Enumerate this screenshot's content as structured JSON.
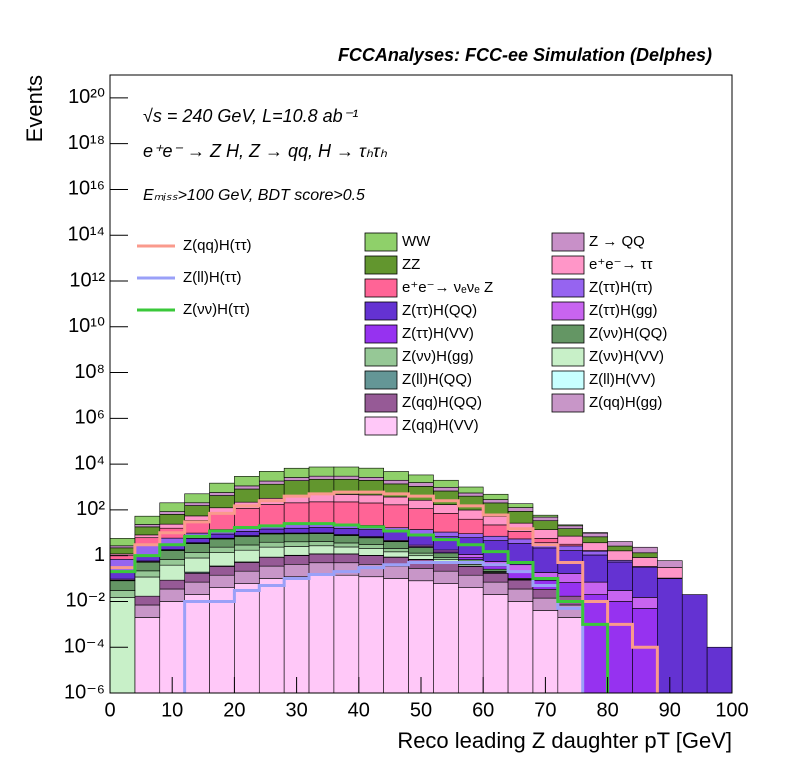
{
  "chart_data": {
    "type": "stacked_histogram",
    "title": "FCCAnalyses: FCC-ee Simulation (Delphes)",
    "annotations": [
      "√s = 240 GeV, L=10.8 ab⁻¹",
      "e⁺e⁻ → Z H, Z → qq, H → τₕτₕ",
      "Eₘᵢₛₛ>100 GeV, BDT score>0.5"
    ],
    "xlabel": "Reco leading Z daughter pT [GeV]",
    "ylabel": "Events",
    "log_y": true,
    "bins": [
      0,
      4,
      8,
      12,
      16,
      20,
      24,
      28,
      32,
      36,
      40,
      44,
      48,
      52,
      56,
      60,
      64,
      68,
      72,
      76,
      80,
      84,
      88,
      92,
      96,
      100
    ],
    "xlim": [
      0,
      100
    ],
    "xticks": [
      0,
      10,
      20,
      30,
      40,
      50,
      60,
      70,
      80,
      90,
      100
    ],
    "ylim": [
      1e-06,
      1e+21
    ],
    "yticks": [
      {
        "value": 1e-06,
        "label": "10⁻⁶"
      },
      {
        "value": 0.0001,
        "label": "10⁻⁴"
      },
      {
        "value": 0.01,
        "label": "10⁻²"
      },
      1,
      {
        "value": 100,
        "label": "10²"
      },
      {
        "value": 10000.0,
        "label": "10⁴"
      },
      {
        "value": 1000000.0,
        "label": "10⁶"
      },
      {
        "value": 100000000.0,
        "label": "10⁸"
      },
      {
        "value": 10000000000.0,
        "label": "10¹⁰"
      },
      {
        "value": 1000000000000.0,
        "label": "10¹²"
      },
      {
        "value": 100000000000000.0,
        "label": "10¹⁴"
      },
      {
        "value": 1e+16,
        "label": "10¹⁶"
      },
      {
        "value": 1e+18,
        "label": "10¹⁸"
      },
      {
        "value": 1e+20,
        "label": "10²⁰"
      }
    ],
    "series": [
      {
        "name": "WW",
        "color": "#8fd06a",
        "values": [
          3,
          30,
          120,
          300,
          900,
          1800,
          3000,
          4000,
          4500,
          4500,
          4000,
          2800,
          1800,
          1000,
          450,
          200,
          60,
          10,
          2,
          0.5,
          0,
          0,
          0,
          0,
          0
        ]
      },
      {
        "name": "Z → QQ",
        "color": "#c890c8",
        "values": [
          0.5,
          5,
          20,
          50,
          150,
          300,
          500,
          700,
          800,
          800,
          700,
          600,
          500,
          300,
          150,
          80,
          40,
          15,
          5,
          3,
          1.5,
          1,
          0.3,
          0,
          0
        ]
      },
      {
        "name": "ZZ",
        "color": "#62962e",
        "values": [
          1,
          10,
          40,
          100,
          300,
          600,
          1000,
          1500,
          1700,
          1700,
          1500,
          1000,
          800,
          500,
          300,
          150,
          60,
          20,
          8,
          3,
          1,
          0.5,
          0,
          0,
          0
        ]
      },
      {
        "name": "e⁺e⁻→ ττ",
        "color": "#ff96c8",
        "values": [
          0.2,
          2,
          8,
          20,
          50,
          100,
          150,
          200,
          250,
          250,
          250,
          200,
          150,
          100,
          60,
          30,
          15,
          8,
          4,
          2,
          1,
          0.5,
          0.2,
          0,
          0
        ]
      },
      {
        "name": "e⁺e⁻→ νₑνₑ Z",
        "color": "#ff6496",
        "values": [
          0.3,
          3,
          10,
          25,
          60,
          100,
          150,
          180,
          200,
          200,
          180,
          150,
          100,
          60,
          30,
          15,
          6,
          2,
          0.5,
          0.1,
          0,
          0,
          0,
          0,
          0
        ]
      },
      {
        "name": "Z(ττ)H(ττ)",
        "color": "#9664f0",
        "values": [
          0.5,
          2,
          3,
          4,
          5,
          6,
          7,
          8,
          8,
          8,
          7,
          6,
          5,
          4,
          3,
          2.5,
          2,
          1.5,
          1,
          0.5,
          0.1,
          0.02,
          0.005,
          0,
          0
        ]
      },
      {
        "name": "Z(ττ)H(QQ)",
        "color": "#6432d2",
        "values": [
          0.1,
          0.5,
          1,
          2,
          3,
          4,
          5,
          6,
          7,
          7,
          7,
          6,
          6,
          5,
          5,
          4,
          3,
          2,
          1.5,
          1,
          0.5,
          0.3,
          0.1,
          0.02,
          0.0001
        ]
      },
      {
        "name": "Z(ττ)H(gg)",
        "color": "#c864f0",
        "values": [
          0.01,
          0.05,
          0.1,
          0.2,
          0.3,
          0.4,
          0.5,
          0.5,
          0.5,
          0.5,
          0.5,
          0.4,
          0.4,
          0.3,
          0.3,
          0.2,
          0.2,
          0.1,
          0.1,
          0.05,
          0.02,
          0.01,
          0,
          0,
          0
        ]
      },
      {
        "name": "Z(ττ)H(VV)",
        "color": "#9632f0",
        "values": [
          0.005,
          0.02,
          0.05,
          0.1,
          0.15,
          0.2,
          0.25,
          0.25,
          0.25,
          0.25,
          0.25,
          0.2,
          0.2,
          0.15,
          0.15,
          0.1,
          0.1,
          0.05,
          0.05,
          0.02,
          0.01,
          0.005,
          0,
          0,
          0
        ]
      },
      {
        "name": "Z(νν)H(QQ)",
        "color": "#649664",
        "values": [
          0.05,
          0.3,
          1,
          2,
          3,
          4,
          5,
          5,
          5,
          4,
          3,
          2,
          1,
          0.5,
          0.2,
          0.05,
          0.01,
          0,
          0,
          0,
          0,
          0,
          0,
          0,
          0
        ]
      },
      {
        "name": "Z(νν)H(gg)",
        "color": "#96c896",
        "values": [
          0.015,
          0.1,
          0.3,
          0.6,
          1,
          1.2,
          1.5,
          1.5,
          1.5,
          1.2,
          1,
          0.6,
          0.3,
          0.15,
          0.06,
          0.015,
          0.003,
          0,
          0,
          0,
          0,
          0,
          0,
          0,
          0
        ]
      },
      {
        "name": "Z(νν)H(VV)",
        "color": "#c8f0c8",
        "values": [
          0.015,
          0.1,
          0.3,
          0.6,
          1,
          1.2,
          1.5,
          1.5,
          1.5,
          1.2,
          1,
          0.6,
          0.3,
          0.15,
          0.06,
          0.015,
          0.003,
          0,
          0,
          0,
          0,
          0,
          0,
          0,
          0
        ]
      },
      {
        "name": "Z(ll)H(QQ)",
        "color": "#649696",
        "values": [
          0,
          0,
          0,
          0.02,
          0.01,
          0.02,
          0.01,
          0.02,
          0.01,
          0.005,
          0.01,
          0.02,
          0.01,
          0.005,
          0.01,
          0.005,
          0,
          0,
          0,
          0,
          0,
          0,
          0,
          0,
          0
        ]
      },
      {
        "name": "Z(ll)H(VV)",
        "color": "#c8ffff",
        "values": [
          0,
          0,
          0,
          0.002,
          0.005,
          0.003,
          0.005,
          0.004,
          0.003,
          0.004,
          0.005,
          0.003,
          0.004,
          0.002,
          0.003,
          0.001,
          0.001,
          0,
          0,
          0,
          0,
          0,
          0,
          0,
          0
        ]
      },
      {
        "name": "Z(qq)H(QQ)",
        "color": "#965a96",
        "values": [
          0,
          0.01,
          0.05,
          0.1,
          0.2,
          0.3,
          0.5,
          0.6,
          0.7,
          0.7,
          0.6,
          0.5,
          0.4,
          0.3,
          0.2,
          0.1,
          0.05,
          0.02,
          0.01,
          0,
          0,
          0,
          0,
          0,
          0
        ]
      },
      {
        "name": "Z(qq)H(gg)",
        "color": "#c896c8",
        "values": [
          0,
          0.005,
          0.025,
          0.05,
          0.1,
          0.15,
          0.25,
          0.3,
          0.35,
          0.35,
          0.3,
          0.25,
          0.2,
          0.15,
          0.1,
          0.05,
          0.025,
          0.01,
          0.005,
          0,
          0,
          0,
          0,
          0,
          0
        ]
      },
      {
        "name": "Z(qq)H(VV)",
        "color": "#ffc8f8",
        "values": [
          0,
          0.002,
          0.01,
          0.02,
          0.04,
          0.06,
          0.1,
          0.12,
          0.14,
          0.14,
          0.12,
          0.1,
          0.08,
          0.06,
          0.04,
          0.02,
          0.01,
          0.004,
          0.002,
          0,
          0,
          0,
          0,
          0,
          0
        ]
      }
    ],
    "lines": [
      {
        "name": "Z(qq)H(ττ)",
        "color": "#fa9a8c",
        "values": [
          0.3,
          3,
          10,
          30,
          70,
          150,
          250,
          400,
          500,
          600,
          600,
          500,
          400,
          250,
          150,
          60,
          15,
          3,
          0.5,
          0.01,
          0.001,
          0.0001,
          0,
          0,
          0
        ]
      },
      {
        "name": "Z(ll)H(ττ)",
        "color": "#9aa0f8",
        "values": [
          0,
          0,
          0,
          0.01,
          0.01,
          0.03,
          0.05,
          0.1,
          0.15,
          0.2,
          0.3,
          0.4,
          0.5,
          0.5,
          0.5,
          0.4,
          0.2,
          0.05,
          0.005,
          0,
          0,
          0,
          0,
          0,
          0
        ]
      },
      {
        "name": "Z(νν)H(ττ)",
        "color": "#3ac83a",
        "values": [
          0.2,
          1,
          3,
          7,
          12,
          17,
          20,
          25,
          25,
          22,
          18,
          12,
          8,
          5,
          3,
          1.5,
          0.5,
          0.1,
          0.01,
          0.001,
          0,
          0,
          0,
          0,
          0
        ]
      }
    ]
  }
}
